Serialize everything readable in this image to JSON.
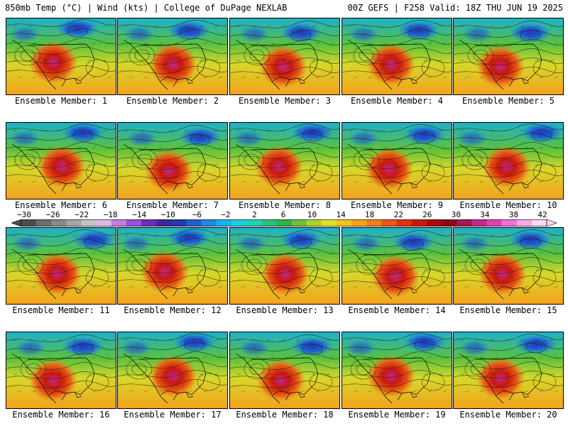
{
  "header": {
    "left_title": "850mb Temp (°C) | Wind (kts) | College of DuPage NEXLAB",
    "right_title": "00Z GEFS | F258 Valid: 18Z THU JUN 19 2025"
  },
  "members": [
    {
      "label": "Ensemble Member: 1"
    },
    {
      "label": "Ensemble Member: 2"
    },
    {
      "label": "Ensemble Member: 3"
    },
    {
      "label": "Ensemble Member: 4"
    },
    {
      "label": "Ensemble Member: 5"
    },
    {
      "label": "Ensemble Member: 6"
    },
    {
      "label": "Ensemble Member: 7"
    },
    {
      "label": "Ensemble Member: 8"
    },
    {
      "label": "Ensemble Member: 9"
    },
    {
      "label": "Ensemble Member: 10"
    },
    {
      "label": "Ensemble Member: 11"
    },
    {
      "label": "Ensemble Member: 12"
    },
    {
      "label": "Ensemble Member: 13"
    },
    {
      "label": "Ensemble Member: 14"
    },
    {
      "label": "Ensemble Member: 15"
    },
    {
      "label": "Ensemble Member: 16"
    },
    {
      "label": "Ensemble Member: 17"
    },
    {
      "label": "Ensemble Member: 18"
    },
    {
      "label": "Ensemble Member: 19"
    },
    {
      "label": "Ensemble Member: 20"
    }
  ],
  "colorbar": {
    "tick_labels": [
      "−30",
      "−26",
      "−22",
      "−18",
      "−14",
      "−10",
      "−6",
      "−2",
      "2",
      "6",
      "10",
      "14",
      "18",
      "22",
      "26",
      "30",
      "34",
      "38",
      "42"
    ],
    "colors": [
      "#4d4d4d",
      "#6e6e6e",
      "#8a8a8a",
      "#a6a6a6",
      "#c4c4c4",
      "#dcb8e8",
      "#c27fe0",
      "#9a4fd8",
      "#6a2fb8",
      "#3a2a9a",
      "#2438b0",
      "#1f5fd0",
      "#1e8ae0",
      "#18b4e8",
      "#1ccfe0",
      "#22d0b0",
      "#2ac080",
      "#34b04a",
      "#6cc23a",
      "#a8d42e",
      "#e0e02a",
      "#f4c224",
      "#f4a21e",
      "#f08018",
      "#e85a14",
      "#e03212",
      "#c8180e",
      "#a80c0c",
      "#8a0a1a",
      "#a01a5a",
      "#c02a8a",
      "#e040b0",
      "#f070d8",
      "#f8a8e8",
      "#fcd8f4"
    ]
  }
}
